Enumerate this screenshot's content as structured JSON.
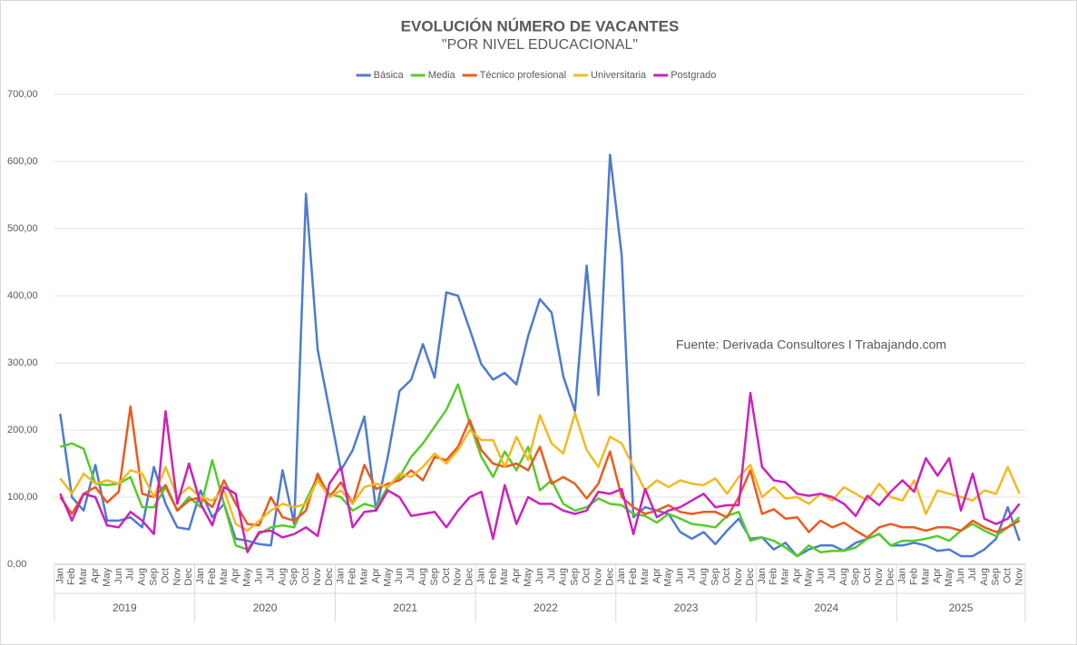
{
  "chart_data": {
    "type": "line",
    "title": "EVOLUCIÓN NÚMERO DE VACANTES",
    "subtitle": "\"POR NIVEL EDUCACIONAL\"",
    "annotation": "Fuente: Derivada Consultores I Trabajando.com",
    "legend": "top",
    "grid": true,
    "categories": [
      "Jan",
      "Feb",
      "Mar",
      "Apr",
      "May",
      "Jun",
      "Jul",
      "Aug",
      "Sep",
      "Oct",
      "Nov",
      "Dec",
      "Jan",
      "Feb",
      "Mar",
      "Apr",
      "May",
      "Jun",
      "Jul",
      "Aug",
      "Sep",
      "Oct",
      "Nov",
      "Dec",
      "Jan",
      "Feb",
      "Mar",
      "Apr",
      "May",
      "Jun",
      "Jul",
      "Aug",
      "Sep",
      "Oct",
      "Nov",
      "Dec",
      "Jan",
      "Feb",
      "Mar",
      "Apr",
      "May",
      "Jun",
      "Jul",
      "Aug",
      "Sep",
      "Oct",
      "Nov",
      "Dec",
      "Jan",
      "Feb",
      "Mar",
      "Apr",
      "May",
      "Jun",
      "Jul",
      "Aug",
      "Sep",
      "Oct",
      "Nov",
      "Dec",
      "Jan",
      "Feb",
      "Mar",
      "Apr",
      "May",
      "Jun",
      "Jul",
      "Aug",
      "Sep",
      "Oct",
      "Nov",
      "Dec",
      "Jan",
      "Feb",
      "Mar",
      "Apr",
      "May",
      "Jun",
      "Jul",
      "Aug",
      "Sep",
      "Oct",
      "Nov"
    ],
    "years": [
      "2019",
      "2020",
      "2021",
      "2022",
      "2023",
      "2024",
      "2025"
    ],
    "ylim": [
      0,
      700
    ],
    "yticks": [
      {
        "value": 0,
        "label": "0,00"
      },
      {
        "value": 100,
        "label": "100,00"
      },
      {
        "value": 200,
        "label": "200,00"
      },
      {
        "value": 300,
        "label": "300,00"
      },
      {
        "value": 400,
        "label": "400,00"
      },
      {
        "value": 500,
        "label": "500,00"
      },
      {
        "value": 600,
        "label": "600,00"
      },
      {
        "value": 700,
        "label": "700,00"
      }
    ],
    "series": [
      {
        "name": "Básica",
        "color": "#4f7bd0",
        "values": [
          224,
          100,
          80,
          148,
          65,
          65,
          70,
          55,
          145,
          90,
          55,
          52,
          110,
          70,
          90,
          38,
          35,
          30,
          28,
          140,
          60,
          552,
          320,
          230,
          140,
          170,
          220,
          80,
          160,
          258,
          275,
          328,
          278,
          405,
          400,
          350,
          298,
          275,
          285,
          268,
          340,
          395,
          375,
          280,
          228,
          445,
          252,
          610,
          460,
          70,
          85,
          80,
          75,
          48,
          38,
          48,
          30,
          50,
          68,
          38,
          40,
          22,
          32,
          12,
          22,
          28,
          28,
          20,
          32,
          38,
          45,
          28,
          28,
          32,
          28,
          20,
          22,
          12,
          12,
          22,
          38,
          85,
          35
        ]
      },
      {
        "name": "Media",
        "color": "#55cc2a",
        "values": [
          175,
          180,
          172,
          120,
          118,
          120,
          130,
          85,
          85,
          115,
          80,
          100,
          85,
          155,
          90,
          28,
          22,
          45,
          55,
          58,
          55,
          95,
          130,
          105,
          100,
          80,
          90,
          85,
          115,
          130,
          160,
          180,
          205,
          230,
          268,
          210,
          160,
          130,
          168,
          140,
          175,
          110,
          125,
          90,
          80,
          85,
          98,
          90,
          88,
          75,
          72,
          62,
          75,
          68,
          60,
          58,
          55,
          72,
          78,
          35,
          40,
          35,
          25,
          12,
          28,
          18,
          20,
          20,
          25,
          38,
          45,
          28,
          35,
          35,
          38,
          42,
          35,
          50,
          60,
          50,
          42,
          55,
          70
        ]
      },
      {
        "name": "Técnico profesional",
        "color": "#ec5a1e",
        "values": [
          100,
          75,
          105,
          115,
          92,
          108,
          235,
          105,
          100,
          118,
          80,
          95,
          100,
          85,
          125,
          90,
          60,
          58,
          100,
          70,
          65,
          80,
          135,
          100,
          122,
          90,
          148,
          112,
          120,
          125,
          140,
          125,
          160,
          155,
          175,
          215,
          170,
          150,
          145,
          150,
          140,
          175,
          120,
          130,
          120,
          98,
          120,
          168,
          100,
          85,
          75,
          80,
          88,
          78,
          75,
          78,
          78,
          70,
          100,
          140,
          75,
          82,
          68,
          70,
          48,
          65,
          55,
          62,
          50,
          40,
          55,
          60,
          55,
          55,
          50,
          55,
          55,
          50,
          65,
          55,
          48,
          55,
          65
        ]
      },
      {
        "name": "Universitaria",
        "color": "#f5b921",
        "values": [
          128,
          105,
          135,
          120,
          125,
          120,
          140,
          135,
          100,
          145,
          100,
          115,
          100,
          95,
          110,
          60,
          50,
          65,
          80,
          90,
          85,
          90,
          125,
          100,
          110,
          90,
          115,
          120,
          115,
          135,
          130,
          145,
          165,
          150,
          170,
          200,
          185,
          185,
          145,
          190,
          155,
          222,
          180,
          165,
          225,
          170,
          145,
          190,
          180,
          145,
          110,
          125,
          115,
          125,
          120,
          118,
          128,
          105,
          130,
          148,
          100,
          115,
          98,
          100,
          90,
          105,
          95,
          115,
          105,
          95,
          120,
          100,
          95,
          125,
          75,
          110,
          105,
          100,
          95,
          110,
          105,
          145,
          105
        ]
      },
      {
        "name": "Postgrado",
        "color": "#cc22bb",
        "values": [
          105,
          65,
          105,
          100,
          58,
          55,
          78,
          65,
          45,
          228,
          90,
          150,
          90,
          58,
          115,
          105,
          18,
          48,
          50,
          40,
          45,
          55,
          42,
          120,
          145,
          55,
          78,
          80,
          110,
          100,
          72,
          75,
          78,
          55,
          80,
          100,
          108,
          38,
          118,
          60,
          100,
          90,
          90,
          80,
          75,
          80,
          108,
          105,
          112,
          45,
          112,
          70,
          80,
          85,
          95,
          105,
          85,
          88,
          88,
          255,
          145,
          125,
          122,
          105,
          102,
          105,
          100,
          90,
          72,
          102,
          88,
          108,
          125,
          108,
          158,
          132,
          158,
          80,
          135,
          68,
          60,
          68,
          90
        ]
      }
    ]
  }
}
